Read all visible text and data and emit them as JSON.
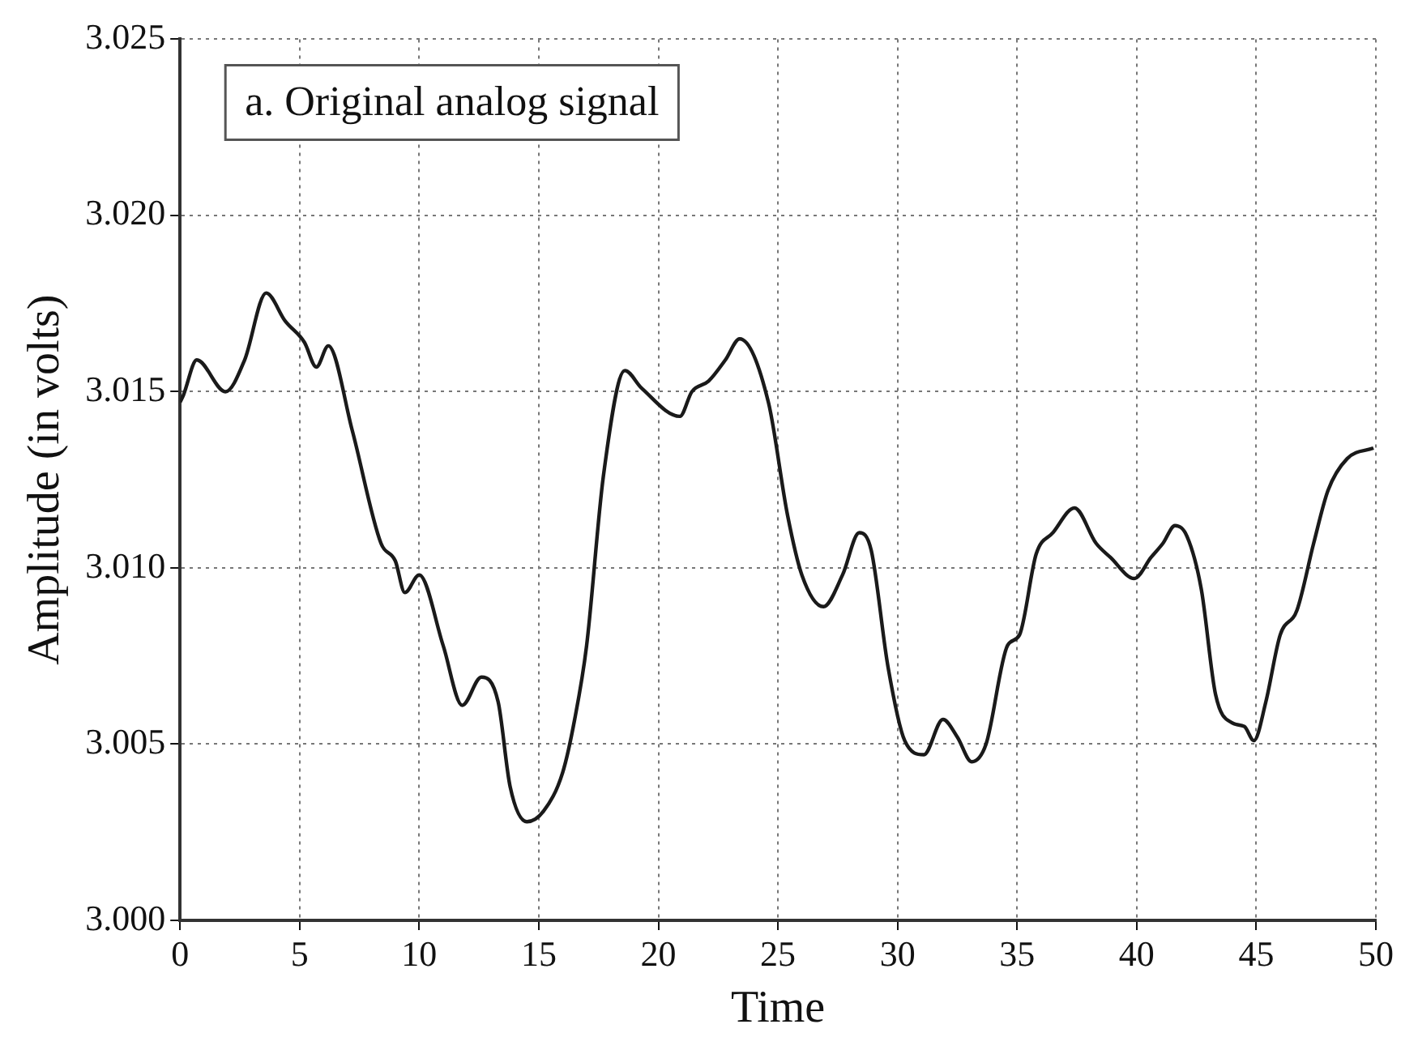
{
  "chart_data": {
    "type": "line",
    "xlabel": "Time",
    "ylabel": "Amplitude (in volts)",
    "annotations": [
      "a. Original analog signal"
    ],
    "series": [
      {
        "color": "#1a1a1a",
        "x": [
          0,
          0.14,
          0.7,
          1.9,
          2.7,
          3.6,
          4.4,
          5.2,
          5.7,
          6.2,
          7.2,
          8.4,
          9.0,
          9.4,
          10.0,
          11.0,
          11.8,
          12.6,
          13.3,
          13.8,
          14.5,
          15.2,
          16.0,
          16.5,
          17.0,
          17.7,
          18.6,
          19.3,
          20.9,
          21.4,
          22.1,
          22.8,
          23.4,
          24.6,
          25.4,
          26.0,
          26.9,
          27.7,
          28.4,
          28.9,
          29.6,
          30.3,
          31.1,
          31.9,
          32.5,
          33.1,
          33.7,
          34.6,
          35.1,
          35.8,
          36.5,
          37.4,
          38.3,
          38.9,
          39.9,
          40.6,
          41.1,
          41.6,
          42.1,
          42.7,
          43.3,
          44.0,
          44.5,
          44.9,
          45.4,
          46.0,
          46.7,
          47.4,
          48.0,
          48.8,
          49.9
        ],
        "values": [
          3.0147,
          3.0149,
          3.0159,
          3.015,
          3.0159,
          3.0178,
          3.017,
          3.0164,
          3.0157,
          3.0163,
          3.0139,
          3.0107,
          3.0102,
          3.0093,
          3.0098,
          3.0078,
          3.0061,
          3.0069,
          3.0062,
          3.0038,
          3.0028,
          3.0031,
          3.0042,
          3.0057,
          3.0078,
          3.0126,
          3.0156,
          3.0151,
          3.0143,
          3.015,
          3.0153,
          3.0159,
          3.0165,
          3.0147,
          3.0115,
          3.0098,
          3.0089,
          3.0098,
          3.011,
          3.0105,
          3.0072,
          3.0051,
          3.0047,
          3.0057,
          3.0052,
          3.0045,
          3.005,
          3.0078,
          3.0081,
          3.0104,
          3.011,
          3.0117,
          3.0107,
          3.0103,
          3.0097,
          3.0103,
          3.0107,
          3.0112,
          3.0109,
          3.0094,
          3.0064,
          3.0056,
          3.0055,
          3.0051,
          3.0062,
          3.0081,
          3.0088,
          3.0107,
          3.0122,
          3.0131,
          3.0134
        ]
      }
    ],
    "xlim": [
      0,
      50
    ],
    "xticks": [
      0,
      5,
      10,
      15,
      20,
      25,
      30,
      35,
      40,
      45,
      50
    ],
    "ylim": [
      3.0,
      3.025
    ],
    "yticks": [
      {
        "value": 3.0,
        "label": "3.000"
      },
      {
        "value": 3.005,
        "label": "3.005"
      },
      {
        "value": 3.01,
        "label": "3.010"
      },
      {
        "value": 3.015,
        "label": "3.015"
      },
      {
        "value": 3.02,
        "label": "3.020"
      },
      {
        "value": 3.025,
        "label": "3.025"
      }
    ],
    "grid": true,
    "legend": false,
    "marker": "none",
    "line_style": "solid"
  }
}
